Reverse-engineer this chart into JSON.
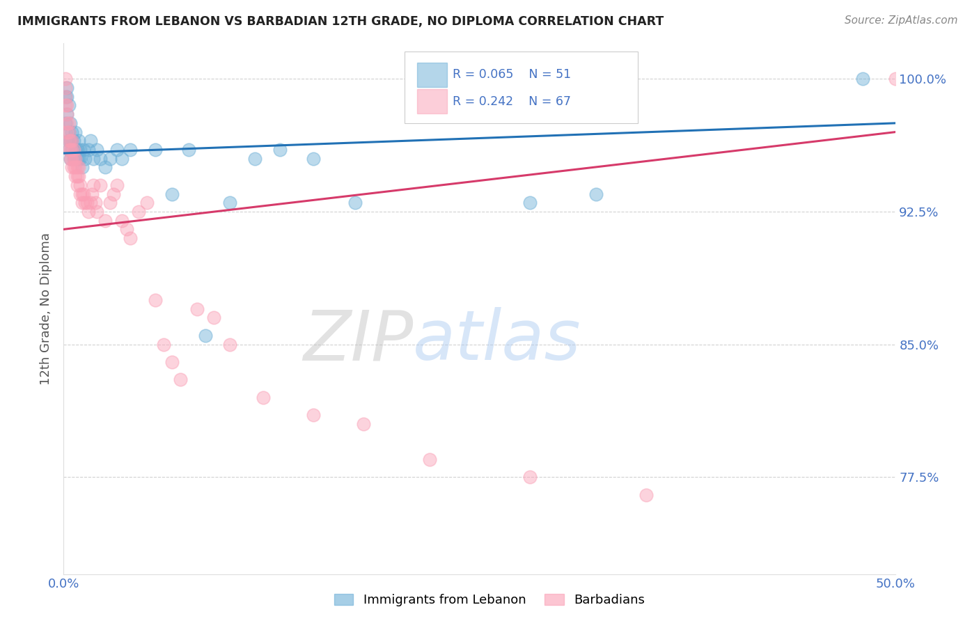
{
  "title": "IMMIGRANTS FROM LEBANON VS BARBADIAN 12TH GRADE, NO DIPLOMA CORRELATION CHART",
  "source": "Source: ZipAtlas.com",
  "ylabel": "12th Grade, No Diploma",
  "xmin": 0.0,
  "xmax": 0.5,
  "ymin": 72.0,
  "ymax": 102.0,
  "legend_r1": "0.065",
  "legend_n1": "51",
  "legend_r2": "0.242",
  "legend_n2": "67",
  "color_lebanon": "#6baed6",
  "color_barbadian": "#fa9fb5",
  "color_trendline_lebanon": "#2171b5",
  "color_trendline_barbadian": "#d63a6a",
  "color_axis_labels": "#4472c4",
  "watermark_zip": "ZIP",
  "watermark_atlas": "atlas",
  "lebanon_x": [
    0.001,
    0.001,
    0.002,
    0.002,
    0.002,
    0.003,
    0.003,
    0.003,
    0.003,
    0.004,
    0.004,
    0.004,
    0.005,
    0.005,
    0.005,
    0.006,
    0.006,
    0.007,
    0.007,
    0.007,
    0.008,
    0.008,
    0.009,
    0.009,
    0.01,
    0.01,
    0.011,
    0.012,
    0.013,
    0.015,
    0.016,
    0.018,
    0.02,
    0.022,
    0.025,
    0.028,
    0.032,
    0.035,
    0.04,
    0.055,
    0.065,
    0.075,
    0.085,
    0.1,
    0.115,
    0.13,
    0.15,
    0.175,
    0.28,
    0.32,
    0.48
  ],
  "lebanon_y": [
    97.5,
    99.0,
    98.0,
    99.0,
    99.5,
    98.5,
    97.0,
    96.5,
    96.0,
    97.5,
    96.5,
    95.5,
    97.0,
    96.5,
    96.0,
    95.5,
    96.5,
    96.0,
    95.5,
    97.0,
    96.0,
    95.5,
    96.5,
    95.5,
    96.0,
    95.5,
    95.0,
    96.0,
    95.5,
    96.0,
    96.5,
    95.5,
    96.0,
    95.5,
    95.0,
    95.5,
    96.0,
    95.5,
    96.0,
    96.0,
    93.5,
    96.0,
    85.5,
    93.0,
    95.5,
    96.0,
    95.5,
    93.0,
    93.0,
    93.5,
    100.0
  ],
  "barbadian_x": [
    0.001,
    0.001,
    0.001,
    0.001,
    0.002,
    0.002,
    0.002,
    0.002,
    0.003,
    0.003,
    0.003,
    0.003,
    0.004,
    0.004,
    0.004,
    0.005,
    0.005,
    0.005,
    0.005,
    0.006,
    0.006,
    0.006,
    0.007,
    0.007,
    0.007,
    0.008,
    0.008,
    0.008,
    0.009,
    0.009,
    0.01,
    0.01,
    0.011,
    0.011,
    0.012,
    0.013,
    0.014,
    0.015,
    0.016,
    0.017,
    0.018,
    0.019,
    0.02,
    0.022,
    0.025,
    0.028,
    0.03,
    0.032,
    0.035,
    0.038,
    0.04,
    0.045,
    0.05,
    0.055,
    0.06,
    0.065,
    0.07,
    0.08,
    0.09,
    0.1,
    0.12,
    0.15,
    0.18,
    0.22,
    0.28,
    0.35,
    0.5
  ],
  "barbadian_y": [
    100.0,
    99.5,
    99.0,
    98.5,
    98.5,
    98.0,
    97.5,
    97.0,
    97.5,
    97.0,
    96.5,
    96.0,
    96.5,
    96.0,
    95.5,
    96.5,
    96.0,
    95.5,
    95.0,
    96.0,
    95.5,
    95.0,
    95.5,
    95.0,
    94.5,
    95.0,
    94.5,
    94.0,
    95.0,
    94.5,
    94.0,
    93.5,
    93.5,
    93.0,
    93.5,
    93.0,
    93.0,
    92.5,
    93.0,
    93.5,
    94.0,
    93.0,
    92.5,
    94.0,
    92.0,
    93.0,
    93.5,
    94.0,
    92.0,
    91.5,
    91.0,
    92.5,
    93.0,
    87.5,
    85.0,
    84.0,
    83.0,
    87.0,
    86.5,
    85.0,
    82.0,
    81.0,
    80.5,
    78.5,
    77.5,
    76.5,
    100.0
  ],
  "trendline_leb_x0": 0.0,
  "trendline_leb_y0": 95.8,
  "trendline_leb_x1": 0.5,
  "trendline_leb_y1": 97.5,
  "trendline_bar_x0": 0.0,
  "trendline_bar_y0": 91.5,
  "trendline_bar_x1": 0.5,
  "trendline_bar_y1": 97.0
}
